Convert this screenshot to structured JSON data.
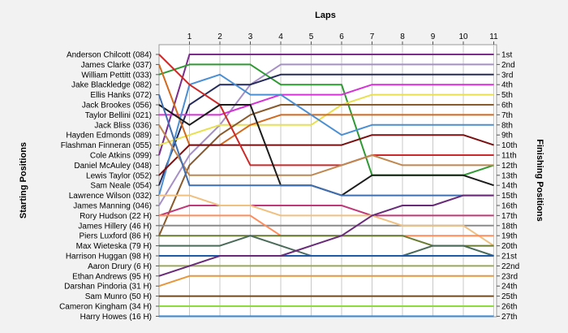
{
  "chart_data": {
    "type": "line",
    "title": "",
    "x_axis_label": "Laps",
    "left_axis_label": "Starting Positions",
    "right_axis_label": "Finishing Positions",
    "laps": [
      0,
      1,
      2,
      3,
      4,
      5,
      6,
      7,
      8,
      9,
      10,
      11
    ],
    "lap_tick_labels": [
      "1",
      "2",
      "3",
      "4",
      "5",
      "6",
      "7",
      "8",
      "9",
      "10",
      "11"
    ],
    "starting_labels": [
      "Anderson Chilcott (084)",
      "James Clarke (037)",
      "William Pettitt (033)",
      "Jake Blackledge (082)",
      "Ellis Hanks (072)",
      "Jack Brookes (056)",
      "Taylor Bellini (021)",
      "Jack Bliss (036)",
      "Hayden Edmonds (089)",
      "Flashman Finneran (055)",
      "Cole Atkins (099)",
      "Daniel McAuley (048)",
      "Lewis Taylor (052)",
      "Sam Neale (054)",
      "Lawrence Wilson (032)",
      "James Manning (046)",
      "Rory Hudson (22 H)",
      "James Hillery (46 H)",
      "Piers Luxford (86 H)",
      "Max Wieteska (79 H)",
      "Harrison Huggan (98 H)",
      "Aaron Drury (6 H)",
      "Ethan Andrews (95 H)",
      "Darshan Pindoria (31 H)",
      "Sam Munro (50 H)",
      "Cameron Kingham (34 H)",
      "Harry Howes (16 H)"
    ],
    "finishing_labels": [
      "1st",
      "2nd",
      "3rd",
      "4th",
      "5th",
      "6th",
      "7th",
      "8th",
      "9th",
      "10th",
      "11th",
      "12th",
      "13th",
      "14th",
      "15th",
      "16th",
      "17th",
      "18th",
      "19th",
      "20th",
      "21st",
      "22nd",
      "23rd",
      "24th",
      "25th",
      "26th",
      "27th"
    ],
    "series": [
      {
        "color": "#7b2c8c",
        "positions": [
          11,
          1,
          1,
          1,
          1,
          1,
          1,
          1,
          1,
          1,
          1,
          1
        ]
      },
      {
        "color": "#a58fc6",
        "positions": [
          16,
          11,
          8,
          4,
          2,
          2,
          2,
          2,
          2,
          2,
          2,
          2
        ]
      },
      {
        "color": "#2f9a33",
        "positions": [
          3,
          2,
          2,
          2,
          4,
          4,
          4,
          13,
          13,
          13,
          13,
          12
        ]
      },
      {
        "color": "#252b5a",
        "positions": [
          14,
          6,
          4,
          4,
          3,
          3,
          3,
          3,
          3,
          3,
          3,
          3
        ]
      },
      {
        "color": "#d633d6",
        "positions": [
          7,
          7,
          7,
          6,
          5,
          5,
          5,
          4,
          4,
          4,
          4,
          4
        ]
      },
      {
        "color": "#e8e050",
        "positions": [
          10,
          9,
          8,
          8,
          8,
          8,
          6,
          5,
          5,
          5,
          5,
          5
        ]
      },
      {
        "color": "#8a5a2c",
        "positions": [
          19,
          12,
          9,
          7,
          6,
          6,
          6,
          6,
          6,
          6,
          6,
          6
        ]
      },
      {
        "color": "#d2691e",
        "positions": [
          2,
          10,
          10,
          8,
          7,
          7,
          7,
          7,
          7,
          7,
          7,
          7
        ]
      },
      {
        "color": "#4a8fd4",
        "positions": [
          15,
          4,
          3,
          5,
          5,
          7,
          9,
          8,
          8,
          8,
          8,
          8
        ]
      },
      {
        "color": "#7a1010",
        "positions": [
          13,
          10,
          10,
          10,
          10,
          10,
          10,
          9,
          9,
          9,
          9,
          10
        ]
      },
      {
        "color": "#cc2a2a",
        "positions": [
          1,
          4,
          6,
          12,
          12,
          12,
          12,
          11,
          11,
          11,
          11,
          11
        ]
      },
      {
        "color": "#c08850",
        "positions": [
          8,
          13,
          13,
          13,
          13,
          13,
          12,
          11,
          12,
          12,
          12,
          12
        ]
      },
      {
        "color": "#1c1c1c",
        "positions": [
          6,
          8,
          6,
          6,
          14,
          14,
          15,
          13,
          13,
          13,
          13,
          14
        ]
      },
      {
        "color": "#3f6fb0",
        "positions": [
          5,
          14,
          14,
          14,
          14,
          14,
          15,
          15,
          15,
          15,
          15,
          15
        ]
      },
      {
        "color": "#c03878",
        "positions": [
          17,
          16,
          16,
          16,
          16,
          16,
          16,
          17,
          17,
          17,
          17,
          17
        ]
      },
      {
        "color": "#8a8a8a",
        "positions": [
          18,
          18,
          18,
          18,
          18,
          18,
          18,
          18,
          18,
          18,
          18,
          18
        ]
      },
      {
        "color": "#f0c080",
        "positions": [
          15,
          15,
          16,
          16,
          17,
          17,
          17,
          17,
          18,
          18,
          18,
          20
        ]
      },
      {
        "color": "#ff8c5a",
        "positions": [
          17,
          17,
          17,
          17,
          19,
          19,
          19,
          19,
          19,
          19,
          19,
          19
        ]
      },
      {
        "color": "#6a7c32",
        "positions": [
          19,
          19,
          19,
          19,
          19,
          19,
          19,
          19,
          19,
          20,
          20,
          20
        ]
      },
      {
        "color": "#4a6a5a",
        "positions": [
          20,
          20,
          20,
          19,
          20,
          21,
          21,
          21,
          21,
          20,
          20,
          21
        ]
      },
      {
        "color": "#1e5aa8",
        "positions": [
          21,
          21,
          21,
          21,
          21,
          21,
          21,
          21,
          21,
          21,
          21,
          21
        ]
      },
      {
        "color": "#9aa85a",
        "positions": [
          22,
          22,
          22,
          22,
          22,
          22,
          22,
          22,
          22,
          22,
          22,
          22
        ]
      },
      {
        "color": "#6a2a7a",
        "positions": [
          23,
          22,
          21,
          21,
          21,
          20,
          19,
          17,
          16,
          16,
          15,
          15
        ]
      },
      {
        "color": "#e8963a",
        "positions": [
          24,
          23,
          23,
          23,
          23,
          23,
          23,
          23,
          23,
          23,
          23,
          23
        ]
      },
      {
        "color": "#704c20",
        "positions": [
          25,
          25,
          25,
          25,
          25,
          25,
          25,
          25,
          25,
          25,
          25,
          25
        ]
      },
      {
        "color": "#8cdc3c",
        "positions": [
          26,
          26,
          26,
          26,
          26,
          26,
          26,
          26,
          26,
          26,
          26,
          26
        ]
      },
      {
        "color": "#3a8ad8",
        "positions": [
          27,
          27,
          27,
          27,
          27,
          27,
          27,
          27,
          27,
          27,
          27,
          27
        ]
      }
    ]
  }
}
